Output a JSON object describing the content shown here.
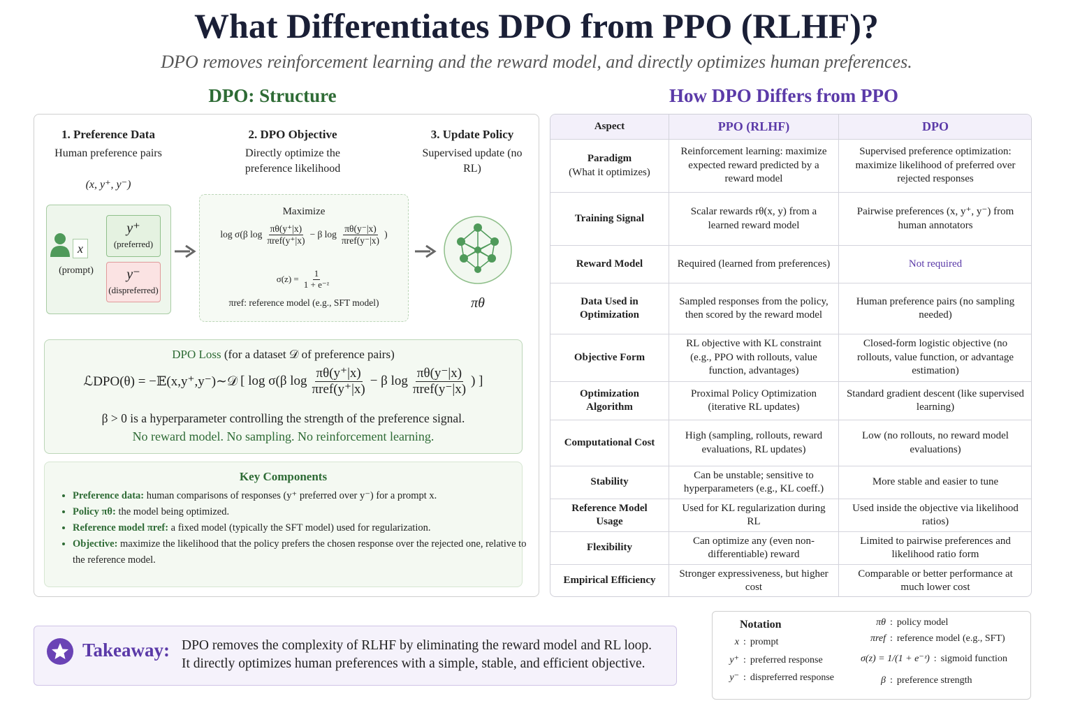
{
  "header": {
    "title": "What Differentiates DPO from PPO (RLHF)?",
    "subtitle": "DPO removes reinforcement learning and the reward model, and directly optimizes human preferences."
  },
  "structure": {
    "title": "DPO: Structure",
    "steps": [
      {
        "heading": "1. Preference Data",
        "text": "Human preference pairs",
        "math": "(x, y⁺, y⁻)"
      },
      {
        "heading": "2. DPO Objective",
        "text": "Directly optimize the preference likelihood"
      },
      {
        "heading": "3. Update Policy",
        "text": "Supervised update (no RL)"
      }
    ],
    "diagram": {
      "prompt_symbol": "x",
      "prompt_label": "(prompt)",
      "preferred_symbol": "y⁺",
      "preferred_label": "(preferred)",
      "dispreferred_symbol": "y⁻",
      "dispreferred_label": "(dispreferred)",
      "objective": {
        "title": "Maximize",
        "formula": [
          "log σ(β log",
          {
            "num": "πθ(y⁺|x)",
            "den": "πref(y⁺|x)"
          },
          "− β log",
          {
            "num": "πθ(y⁻|x)",
            "den": "πref(y⁻|x)"
          },
          ")"
        ],
        "sigmoid": [
          "σ(z) =",
          {
            "num": "1",
            "den": "1 + e⁻ᶻ"
          }
        ],
        "ref_note": "πref: reference model (e.g., SFT model)"
      },
      "policy_symbol": "πθ"
    },
    "loss": {
      "title": "DPO Loss",
      "title_note": "(for a dataset 𝒟 of preference pairs)",
      "formula": [
        "ℒDPO(θ) = −𝔼(x,y⁺,y⁻)∼𝒟",
        "[ log σ(β log",
        {
          "num": "πθ(y⁺|x)",
          "den": "πref(y⁺|x)"
        },
        "− β log",
        {
          "num": "πθ(y⁻|x)",
          "den": "πref(y⁻|x)"
        },
        ") ]"
      ],
      "note": "β > 0 is a hyperparameter controlling the strength of the preference signal.",
      "emphasis": "No reward model. No sampling. No reinforcement learning."
    },
    "key_components": {
      "title": "Key Components",
      "items": [
        {
          "term": "Preference data:",
          "text": "human comparisons of responses (y⁺ preferred over y⁻) for a prompt x."
        },
        {
          "term": "Policy πθ:",
          "text": "the model being optimized."
        },
        {
          "term": "Reference model πref:",
          "text": "a fixed model (typically the SFT model) used for regularization."
        },
        {
          "term": "Objective:",
          "text": "maximize the likelihood that the policy prefers the chosen response over the rejected one, relative to the reference model."
        }
      ]
    }
  },
  "comparison": {
    "title": "How DPO Differs from PPO",
    "table": {
      "header": [
        "Aspect",
        "PPO (RLHF)",
        "DPO"
      ],
      "rows": [
        [
          {
            "label": "Paradigm",
            "sub": "(What it optimizes)"
          },
          "Reinforcement learning: maximize expected reward predicted by a reward model",
          "Supervised preference optimization: maximize likelihood of preferred over rejected responses"
        ],
        [
          {
            "label": "Training Signal"
          },
          "Scalar rewards rθ(x, y) from a learned reward model",
          "Pairwise preferences (x, y⁺, y⁻) from human annotators"
        ],
        [
          {
            "label": "Reward Model"
          },
          "Required (learned from preferences)",
          "Not required"
        ],
        [
          {
            "label": "Data Used in Optimization"
          },
          "Sampled responses from the policy, then scored by the reward model",
          "Human preference pairs (no sampling needed)"
        ],
        [
          {
            "label": "Objective Form"
          },
          "RL objective with KL constraint (e.g., PPO with rollouts, value function, advantages)",
          "Closed-form logistic objective (no rollouts, value function, or advantage estimation)"
        ],
        [
          {
            "label": "Optimization Algorithm"
          },
          "Proximal Policy Optimization (iterative RL updates)",
          "Standard gradient descent (like supervised learning)"
        ],
        [
          {
            "label": "Computational Cost"
          },
          "High (sampling, rollouts, reward evaluations, RL updates)",
          "Low (no rollouts, no reward model evaluations)"
        ],
        [
          {
            "label": "Stability"
          },
          "Can be unstable; sensitive to hyperparameters (e.g., KL coeff.)",
          "More stable and easier to tune"
        ],
        [
          {
            "label": "Reference Model Usage"
          },
          "Used for KL regularization during RL",
          "Used inside the objective via likelihood ratios)"
        ],
        [
          {
            "label": "Flexibility"
          },
          "Can optimize any (even non-differentiable) reward",
          "Limited to pairwise preferences and likelihood ratio form"
        ],
        [
          {
            "label": "Empirical Efficiency"
          },
          "Stronger expressiveness, but higher cost",
          "Comparable or better performance at much lower cost"
        ]
      ]
    }
  },
  "takeaway": {
    "label": "Takeaway:",
    "lines": [
      "DPO removes the complexity of RLHF by eliminating the reward model and RL loop.",
      "It directly optimizes human preferences with a simple, stable, and efficient objective."
    ]
  },
  "notation": {
    "title": "Notation",
    "separator": ":",
    "items": [
      {
        "symbol": "x",
        "meaning": "prompt"
      },
      {
        "symbol": "y⁺",
        "meaning": "preferred response"
      },
      {
        "symbol": "y⁻",
        "meaning": "dispreferred response"
      },
      {
        "symbol": "πθ",
        "meaning": "policy model"
      },
      {
        "symbol": "πref",
        "meaning": "reference model (e.g., SFT)"
      },
      {
        "symbol": "σ(z) = 1/(1 + e⁻ᶻ)",
        "meaning": "sigmoid function"
      },
      {
        "symbol": "β",
        "meaning": "preference strength"
      }
    ]
  }
}
